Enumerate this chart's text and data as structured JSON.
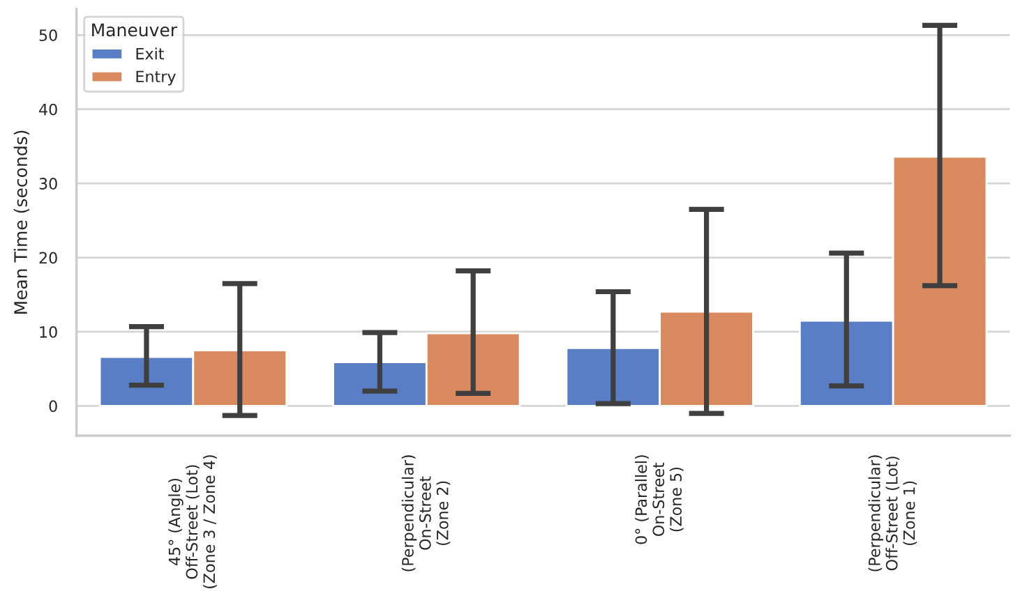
{
  "chart_data": {
    "type": "bar",
    "ylabel": "Mean Time (seconds)",
    "legend_title": "Maneuver",
    "categories": [
      "45° (Angle)\nOff-Street (Lot)\n(Zone 3 / Zone 4)",
      "(Perpendicular)\nOn-Street\n(Zone 2)",
      "0° (Parallel)\nOn-Street\n(Zone 5)",
      "(Perpendicular)\nOff-Street (Lot)\n(Zone 1)"
    ],
    "series": [
      {
        "name": "Exit",
        "color": "#5a7ec6",
        "values": [
          6.6,
          5.9,
          7.8,
          11.5
        ],
        "errors": [
          [
            2.8,
            10.7
          ],
          [
            2.0,
            9.9
          ],
          [
            0.3,
            15.4
          ],
          [
            2.7,
            20.6
          ]
        ]
      },
      {
        "name": "Entry",
        "color": "#d98a5e",
        "values": [
          7.5,
          9.8,
          12.7,
          33.6
        ],
        "errors": [
          [
            -1.3,
            16.5
          ],
          [
            1.7,
            18.2
          ],
          [
            -1.0,
            26.5
          ],
          [
            16.2,
            51.3
          ]
        ]
      }
    ],
    "ylim": [
      -4,
      53.5
    ],
    "yticks": [
      0,
      10,
      20,
      30,
      40,
      50
    ],
    "grid": "y",
    "legend": "top left"
  }
}
